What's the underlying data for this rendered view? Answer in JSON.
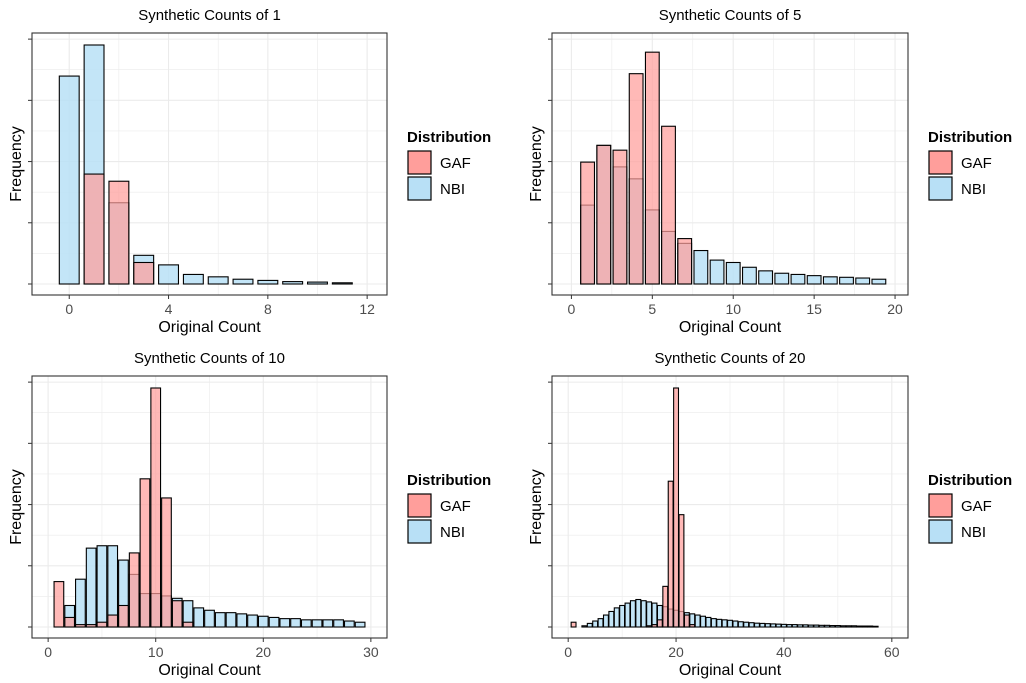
{
  "colors": {
    "GAF": "#ff9e9b",
    "NBI": "#b8e0f6",
    "grid": "#ebebeb",
    "outline": "#000000"
  },
  "legend": {
    "title": "Distribution",
    "items": [
      "GAF",
      "NBI"
    ],
    "position": "right"
  },
  "chart_data": [
    {
      "type": "histogram",
      "title": "Synthetic Counts of 1",
      "xlabel": "Original Count",
      "ylabel": "Frequency",
      "xlim": [
        -1.5,
        12.8
      ],
      "xticks": [
        0,
        4,
        8,
        12
      ],
      "ylim": [
        0,
        1
      ],
      "y_tick_labels_shown": false,
      "grid": true,
      "binwidth": 0.8,
      "x": [
        0,
        1,
        2,
        3,
        4,
        5,
        6,
        7,
        8,
        9,
        10,
        11
      ],
      "series": [
        {
          "name": "GAF",
          "values": [
            0.0,
            0.46,
            0.43,
            0.09,
            0.0,
            0.0,
            0.0,
            0.0,
            0.0,
            0.0,
            0.0,
            0.0
          ]
        },
        {
          "name": "NBI",
          "values": [
            0.87,
            1.0,
            0.34,
            0.12,
            0.08,
            0.04,
            0.03,
            0.02,
            0.015,
            0.01,
            0.008,
            0.005
          ]
        }
      ]
    },
    {
      "type": "histogram",
      "title": "Synthetic Counts of 5",
      "xlabel": "Original Count",
      "ylabel": "Frequency",
      "xlim": [
        -1.2,
        20.8
      ],
      "xticks": [
        0,
        5,
        10,
        15,
        20
      ],
      "ylim": [
        0,
        1
      ],
      "y_tick_labels_shown": false,
      "grid": true,
      "binwidth": 0.85,
      "x": [
        0,
        1,
        2,
        3,
        4,
        5,
        6,
        7,
        8,
        9,
        10,
        11,
        12,
        13,
        14,
        15,
        16,
        17,
        18,
        19
      ],
      "series": [
        {
          "name": "GAF",
          "values": [
            0.0,
            0.51,
            0.58,
            0.56,
            0.88,
            0.97,
            0.66,
            0.19,
            0.0,
            0.0,
            0.0,
            0.0,
            0.0,
            0.0,
            0.0,
            0.0,
            0.0,
            0.0,
            0.0,
            0.0
          ]
        },
        {
          "name": "NBI",
          "values": [
            0.0,
            0.33,
            0.58,
            0.49,
            0.44,
            0.31,
            0.22,
            0.17,
            0.14,
            0.1,
            0.09,
            0.07,
            0.055,
            0.045,
            0.04,
            0.035,
            0.03,
            0.028,
            0.025,
            0.02
          ]
        }
      ]
    },
    {
      "type": "histogram",
      "title": "Synthetic Counts of 10",
      "xlabel": "Original Count",
      "ylabel": "Frequency",
      "xlim": [
        -1.5,
        31.5
      ],
      "xticks": [
        0,
        10,
        20,
        30
      ],
      "ylim": [
        0,
        1
      ],
      "y_tick_labels_shown": false,
      "grid": true,
      "binwidth": 0.9,
      "x": [
        1,
        2,
        3,
        4,
        5,
        6,
        7,
        8,
        9,
        10,
        11,
        12,
        13,
        14,
        15,
        16,
        17,
        18,
        19,
        20,
        21,
        22,
        23,
        24,
        25,
        26,
        27,
        28,
        29
      ],
      "series": [
        {
          "name": "GAF",
          "values": [
            0.19,
            0.04,
            0.01,
            0.01,
            0.02,
            0.05,
            0.09,
            0.31,
            0.62,
            1.0,
            0.54,
            0.11,
            0.02,
            0.0,
            0.0,
            0.0,
            0.0,
            0.0,
            0.0,
            0.0,
            0.0,
            0.0,
            0.0,
            0.0,
            0.0,
            0.0,
            0.0,
            0.0,
            0.0
          ]
        },
        {
          "name": "NBI",
          "values": [
            0.0,
            0.09,
            0.2,
            0.33,
            0.34,
            0.34,
            0.28,
            0.22,
            0.14,
            0.14,
            0.13,
            0.12,
            0.11,
            0.08,
            0.07,
            0.06,
            0.06,
            0.055,
            0.05,
            0.045,
            0.04,
            0.035,
            0.035,
            0.03,
            0.03,
            0.03,
            0.03,
            0.025,
            0.02
          ]
        }
      ]
    },
    {
      "type": "histogram",
      "title": "Synthetic Counts of 20",
      "xlabel": "Original Count",
      "ylabel": "Frequency",
      "xlim": [
        -3,
        63
      ],
      "xticks": [
        0,
        20,
        40,
        60
      ],
      "ylim": [
        0,
        1
      ],
      "y_tick_labels_shown": false,
      "grid": true,
      "binwidth": 0.9,
      "x": [
        0,
        1,
        2,
        3,
        4,
        5,
        6,
        7,
        8,
        9,
        10,
        11,
        12,
        13,
        14,
        15,
        16,
        17,
        18,
        19,
        20,
        21,
        22,
        23,
        24,
        25,
        26,
        27,
        28,
        29,
        30,
        31,
        32,
        33,
        34,
        35,
        36,
        37,
        38,
        39,
        40,
        41,
        42,
        43,
        44,
        45,
        46,
        47,
        48,
        49,
        50,
        51,
        52,
        53,
        54,
        55,
        56,
        57,
        58
      ],
      "series": [
        {
          "name": "GAF",
          "values": [
            0.0,
            0.02,
            0.0,
            0.0,
            0.0,
            0.0,
            0.0,
            0.0,
            0.0,
            0.0,
            0.0,
            0.0,
            0.0,
            0.0,
            0.0,
            0.005,
            0.01,
            0.03,
            0.17,
            0.61,
            1.0,
            0.47,
            0.05,
            0.01,
            0.0,
            0.0,
            0.0,
            0.0,
            0.0,
            0.0,
            0.0,
            0.0,
            0.0,
            0.0,
            0.0,
            0.0,
            0.0,
            0.0,
            0.0,
            0.0,
            0.0,
            0.0,
            0.0,
            0.0,
            0.0,
            0.0,
            0.0,
            0.0,
            0.0,
            0.0,
            0.0,
            0.0,
            0.0,
            0.0,
            0.0,
            0.0,
            0.0,
            0.0,
            0.0
          ]
        },
        {
          "name": "NBI",
          "values": [
            0.0,
            0.0,
            0.0,
            0.005,
            0.015,
            0.025,
            0.035,
            0.05,
            0.065,
            0.08,
            0.09,
            0.1,
            0.11,
            0.115,
            0.11,
            0.105,
            0.1,
            0.09,
            0.085,
            0.075,
            0.07,
            0.065,
            0.06,
            0.055,
            0.05,
            0.045,
            0.04,
            0.035,
            0.032,
            0.03,
            0.028,
            0.025,
            0.022,
            0.02,
            0.018,
            0.016,
            0.015,
            0.014,
            0.013,
            0.012,
            0.011,
            0.01,
            0.01,
            0.009,
            0.009,
            0.008,
            0.008,
            0.007,
            0.007,
            0.006,
            0.006,
            0.005,
            0.005,
            0.005,
            0.004,
            0.004,
            0.004,
            0.003,
            0.0
          ]
        }
      ]
    }
  ]
}
